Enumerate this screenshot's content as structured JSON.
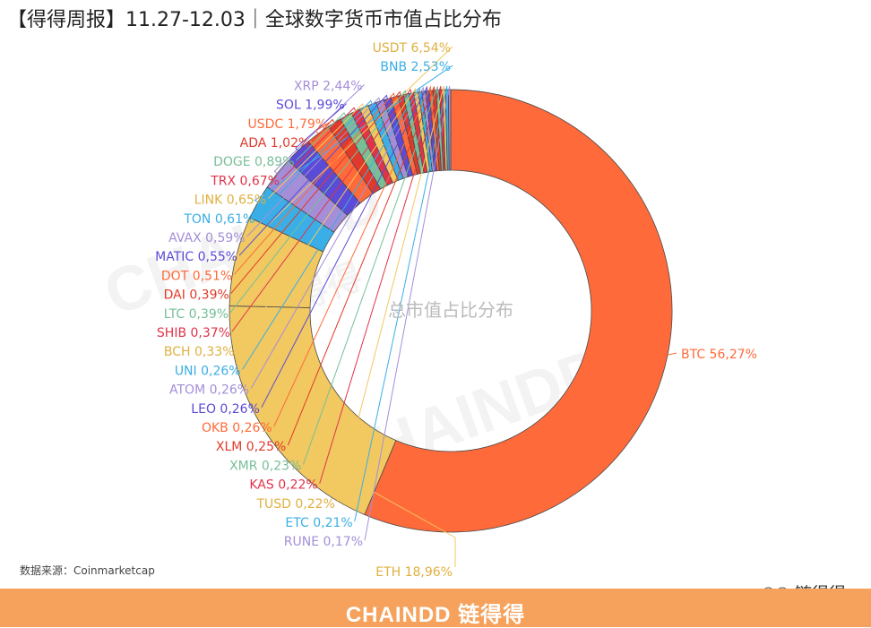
{
  "header": {
    "title": "【得得周报】11.27-12.03｜全球数字货币市值占比分布"
  },
  "source": "数据来源：Coinmarketcap",
  "footer": {
    "brand": "CHAINDD 链得得"
  },
  "wechat": {
    "label": "链得得",
    "icon": "wechat-icon"
  },
  "watermarks": [
    "CHAINDD",
    "链得得",
    "CHAINDD",
    "链得得"
  ],
  "chart_data": {
    "type": "pie",
    "subtype": "donut",
    "center_label": "总市值占比分布",
    "slices": [
      {
        "name": "BTC",
        "label": "BTC 56,27%",
        "value": 56.27,
        "color": "#ff6a3a"
      },
      {
        "name": "ETH",
        "label": "ETH 18,96%",
        "value": 18.96,
        "color": "#f2c860"
      },
      {
        "name": "USDT",
        "label": "USDT 6,54%",
        "value": 6.54,
        "color": "#f2c860"
      },
      {
        "name": "BNB",
        "label": "BNB 2,53%",
        "value": 2.53,
        "color": "#3aaee6"
      },
      {
        "name": "XRP",
        "label": "XRP 2,44%",
        "value": 2.44,
        "color": "#a48ed8"
      },
      {
        "name": "SOL",
        "label": "SOL 1,99%",
        "value": 1.99,
        "color": "#5b4bd6"
      },
      {
        "name": "USDC",
        "label": "USDC 1,79%",
        "value": 1.79,
        "color": "#ff6a3a"
      },
      {
        "name": "ADA",
        "label": "ADA 1,02%",
        "value": 1.02,
        "color": "#e03a2a"
      },
      {
        "name": "DOGE",
        "label": "DOGE 0,89%",
        "value": 0.89,
        "color": "#78bf98"
      },
      {
        "name": "TRX",
        "label": "TRX 0,67%",
        "value": 0.67,
        "color": "#e0334a"
      },
      {
        "name": "LINK",
        "label": "LINK 0,65%",
        "value": 0.65,
        "color": "#f2c860"
      },
      {
        "name": "TON",
        "label": "TON 0,61%",
        "value": 0.61,
        "color": "#3aaee6"
      },
      {
        "name": "AVAX",
        "label": "AVAX 0,59%",
        "value": 0.59,
        "color": "#a48ed8"
      },
      {
        "name": "MATIC",
        "label": "MATIC 0,55%",
        "value": 0.55,
        "color": "#5b4bd6"
      },
      {
        "name": "DOT",
        "label": "DOT 0,51%",
        "value": 0.51,
        "color": "#ff6a3a"
      },
      {
        "name": "DAI",
        "label": "DAI 0,39%",
        "value": 0.39,
        "color": "#e03a2a"
      },
      {
        "name": "LTC",
        "label": "LTC 0,39%",
        "value": 0.39,
        "color": "#78bf98"
      },
      {
        "name": "SHIB",
        "label": "SHIB 0,37%",
        "value": 0.37,
        "color": "#e0334a"
      },
      {
        "name": "BCH",
        "label": "BCH 0,33%",
        "value": 0.33,
        "color": "#f2c860"
      },
      {
        "name": "UNI",
        "label": "UNI 0,26%",
        "value": 0.26,
        "color": "#3aaee6"
      },
      {
        "name": "ATOM",
        "label": "ATOM 0,26%",
        "value": 0.26,
        "color": "#a48ed8"
      },
      {
        "name": "LEO",
        "label": "LEO 0,26%",
        "value": 0.26,
        "color": "#5b4bd6"
      },
      {
        "name": "OKB",
        "label": "OKB 0,26%",
        "value": 0.26,
        "color": "#ff6a3a"
      },
      {
        "name": "XLM",
        "label": "XLM 0,25%",
        "value": 0.25,
        "color": "#e03a2a"
      },
      {
        "name": "XMR",
        "label": "XMR 0,23%",
        "value": 0.23,
        "color": "#78bf98"
      },
      {
        "name": "KAS",
        "label": "KAS 0,22%",
        "value": 0.22,
        "color": "#e0334a"
      },
      {
        "name": "TUSD",
        "label": "TUSD 0,22%",
        "value": 0.22,
        "color": "#f2c860"
      },
      {
        "name": "ETC",
        "label": "ETC 0,21%",
        "value": 0.21,
        "color": "#3aaee6"
      },
      {
        "name": "RUNE",
        "label": "RUNE 0,17%",
        "value": 0.17,
        "color": "#a48ed8"
      }
    ]
  }
}
